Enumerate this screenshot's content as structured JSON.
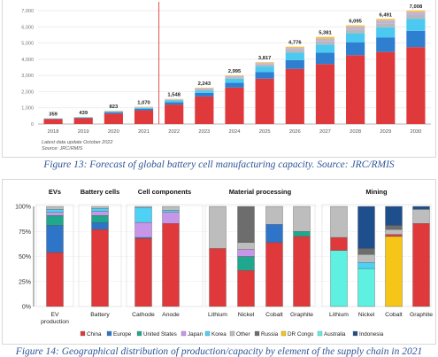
{
  "figure13": {
    "caption": "Figure 13: Forecast of global battery cell manufacturing capacity. Source: JRC/RMIS",
    "note_line1": "Latest data update October 2022",
    "note_line2": "Source: JRC/RMIS",
    "colors": {
      "base": "#e0393b",
      "s2": "#2e7fd0",
      "s3": "#4cc9f0",
      "s4": "#b8b8b8",
      "s5": "#bdb2e4",
      "s6": "#f2c14e",
      "forecast_line": "#e0393b"
    }
  },
  "figure14": {
    "caption": "Figure 14: Geographical distribution of production/capacity by element of the supply chain in 2021",
    "groups": [
      "EVs",
      "Battery cells",
      "Cell components",
      "Material processing",
      "Mining"
    ],
    "legend": [
      "China",
      "Europe",
      "United States",
      "Japan",
      "Korea",
      "Other",
      "Russia",
      "DR Congo",
      "Australia",
      "Indonesia"
    ],
    "colors": {
      "China": "#e0393b",
      "Europe": "#2e74c9",
      "United States": "#1fa88e",
      "Japan": "#c896e8",
      "Korea": "#4dd2f5",
      "Other": "#bdbdbd",
      "Russia": "#6d6d6d",
      "DR Congo": "#f5c518",
      "Australia": "#5ef0e0",
      "Indonesia": "#1f4e8c"
    }
  },
  "chart_data": [
    {
      "type": "bar",
      "stacked": true,
      "categories": [
        "2018",
        "2019",
        "2020",
        "2021",
        "2022",
        "2023",
        "2024",
        "2025",
        "2026",
        "2027",
        "2028",
        "2029",
        "2030"
      ],
      "totals": [
        359,
        439,
        823,
        1070,
        1548,
        2243,
        2995,
        3817,
        4776,
        5381,
        6095,
        6491,
        7008
      ],
      "total_labels": [
        "359",
        "439",
        "823",
        "1,070",
        "1,548",
        "2,243",
        "2,995",
        "3,817",
        "4,776",
        "5,381",
        "6,095",
        "6,491",
        "7,008"
      ],
      "series": [
        {
          "values": [
            300,
            360,
            650,
            850,
            1200,
            1700,
            2250,
            2800,
            3400,
            3700,
            4250,
            4450,
            4750
          ]
        },
        {
          "values": [
            20,
            25,
            60,
            80,
            150,
            220,
            300,
            400,
            550,
            700,
            800,
            900,
            1000
          ]
        },
        {
          "values": [
            20,
            30,
            60,
            70,
            100,
            150,
            250,
            350,
            450,
            500,
            550,
            620,
            750
          ]
        },
        {
          "values": [
            10,
            12,
            25,
            30,
            40,
            70,
            90,
            120,
            170,
            200,
            240,
            250,
            230
          ]
        },
        {
          "values": [
            5,
            7,
            15,
            20,
            35,
            60,
            60,
            90,
            110,
            150,
            160,
            170,
            170
          ]
        },
        {
          "values": [
            4,
            5,
            13,
            20,
            23,
            43,
            45,
            57,
            96,
            131,
            95,
            101,
            108
          ]
        }
      ],
      "ylim": [
        0,
        7000
      ],
      "yticks": [
        0,
        1000,
        2000,
        3000,
        4000,
        5000,
        6000,
        7000
      ],
      "ytick_labels": [
        "0",
        "1,000",
        "2,000",
        "3,000",
        "4,000",
        "5,000",
        "6,000",
        "7,000"
      ],
      "forecast_starts_after": "2021",
      "grid": true
    },
    {
      "type": "bar",
      "stacked": true,
      "ylim": [
        0,
        100
      ],
      "yticks": [
        0,
        25,
        50,
        75,
        100
      ],
      "ytick_labels": [
        "0%",
        "25%",
        "50%",
        "75%",
        "100%"
      ],
      "categories": [
        "EV production",
        "Battery",
        "Cathode",
        "Anode",
        "Lithium",
        "Nickel",
        "Cobalt",
        "Graphite",
        "Lithium",
        "Nickel",
        "Cobalt",
        "Graphite"
      ],
      "bars": [
        {
          "label_lines": [
            "EV",
            "production"
          ],
          "group": 0,
          "segments": [
            [
              "China",
              54
            ],
            [
              "Europe",
              27
            ],
            [
              "United States",
              10
            ],
            [
              "Japan",
              3
            ],
            [
              "Korea",
              3
            ],
            [
              "Other",
              3
            ]
          ]
        },
        {
          "label_lines": [
            "Battery"
          ],
          "group": 1,
          "segments": [
            [
              "China",
              77
            ],
            [
              "Europe",
              7
            ],
            [
              "United States",
              7
            ],
            [
              "Japan",
              4
            ],
            [
              "Korea",
              3
            ],
            [
              "Other",
              2
            ]
          ]
        },
        {
          "label_lines": [
            "Cathode"
          ],
          "group": 2,
          "segments": [
            [
              "China",
              68
            ],
            [
              "Europe",
              1
            ],
            [
              "Japan",
              15
            ],
            [
              "Korea",
              15
            ],
            [
              "Other",
              1
            ]
          ]
        },
        {
          "label_lines": [
            "Anode"
          ],
          "group": 2,
          "segments": [
            [
              "China",
              83
            ],
            [
              "Japan",
              11
            ],
            [
              "Korea",
              2
            ],
            [
              "Other",
              4
            ]
          ]
        },
        {
          "label_lines": [
            "Lithium"
          ],
          "group": 3,
          "segments": [
            [
              "China",
              58
            ],
            [
              "Other",
              42
            ]
          ]
        },
        {
          "label_lines": [
            "Nickel"
          ],
          "group": 3,
          "segments": [
            [
              "China",
              36
            ],
            [
              "United States",
              14
            ],
            [
              "Japan",
              7
            ],
            [
              "Other",
              7
            ],
            [
              "Russia",
              36
            ]
          ]
        },
        {
          "label_lines": [
            "Cobalt"
          ],
          "group": 3,
          "segments": [
            [
              "China",
              64
            ],
            [
              "Europe",
              18
            ],
            [
              "Other",
              18
            ]
          ]
        },
        {
          "label_lines": [
            "Graphite"
          ],
          "group": 3,
          "segments": [
            [
              "China",
              70
            ],
            [
              "United States",
              5
            ],
            [
              "Other",
              25
            ]
          ]
        },
        {
          "label_lines": [
            "Lithium"
          ],
          "group": 4,
          "segments": [
            [
              "Australia",
              56
            ],
            [
              "China",
              13
            ],
            [
              "Other",
              31
            ]
          ]
        },
        {
          "label_lines": [
            "Nickel"
          ],
          "group": 4,
          "segments": [
            [
              "Australia",
              38
            ],
            [
              "Korea",
              6
            ],
            [
              "Other",
              8
            ],
            [
              "Russia",
              6
            ],
            [
              "Indonesia",
              42
            ]
          ]
        },
        {
          "label_lines": [
            "Cobalt"
          ],
          "group": 4,
          "segments": [
            [
              "DR Congo",
              70
            ],
            [
              "China",
              2
            ],
            [
              "Other",
              5
            ],
            [
              "Russia",
              4
            ],
            [
              "Indonesia",
              19
            ]
          ]
        },
        {
          "label_lines": [
            "Graphite"
          ],
          "group": 4,
          "segments": [
            [
              "China",
              83
            ],
            [
              "Other",
              14
            ],
            [
              "Indonesia",
              3
            ]
          ]
        }
      ]
    }
  ]
}
